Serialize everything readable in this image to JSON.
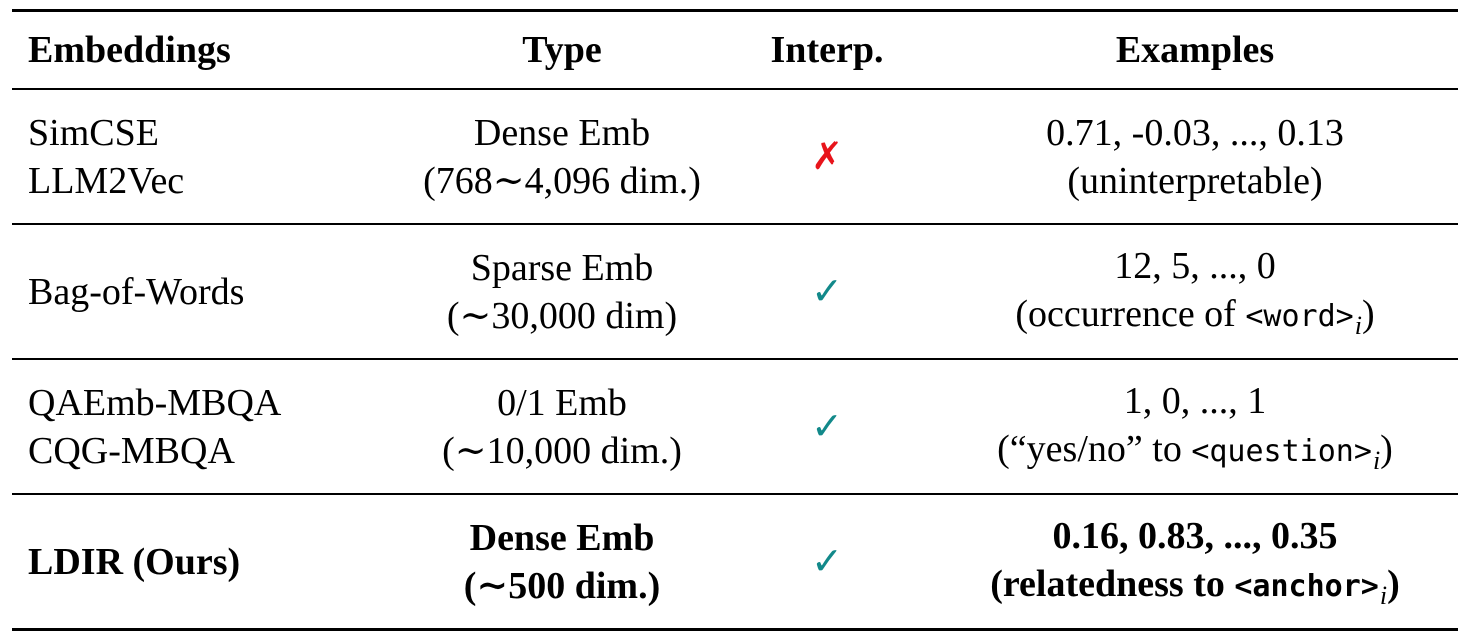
{
  "headers": {
    "embeddings": "Embeddings",
    "type": "Type",
    "interp": "Interp.",
    "examples": "Examples"
  },
  "marks": {
    "cross": "✗",
    "check": "✓"
  },
  "rows": [
    {
      "embeddings": [
        "SimCSE",
        "LLM2Vec"
      ],
      "type": [
        "Dense Emb",
        "(768∼4,096 dim.)"
      ],
      "interp": "no",
      "examples_line1": "0.71, -0.03, ..., 0.13",
      "examples_line2": {
        "prefix": "(uninterpretable)"
      }
    },
    {
      "embeddings": [
        "Bag-of-Words"
      ],
      "type": [
        "Sparse Emb",
        "(∼30,000 dim)"
      ],
      "interp": "yes",
      "examples_line1": "12, 5, ..., 0",
      "examples_line2": {
        "prefix": "(occurrence of ",
        "token": "<word>",
        "sub": "i",
        "suffix": ")"
      }
    },
    {
      "embeddings": [
        "QAEmb-MBQA",
        "CQG-MBQA"
      ],
      "type": [
        "0/1 Emb",
        "(∼10,000 dim.)"
      ],
      "interp": "yes",
      "examples_line1": "1, 0, ..., 1",
      "examples_line2": {
        "prefix": "(“yes/no” to ",
        "token": "<question>",
        "sub": "i",
        "suffix": ")"
      }
    },
    {
      "embeddings": [
        "LDIR (Ours)"
      ],
      "type": [
        "Dense Emb",
        "(∼500 dim.)"
      ],
      "interp": "yes",
      "examples_line1": "0.16, 0.83, ..., 0.35",
      "examples_line2": {
        "prefix": "(relatedness to ",
        "token": "<anchor>",
        "sub": "i",
        "suffix": ")"
      },
      "bold": true
    }
  ]
}
